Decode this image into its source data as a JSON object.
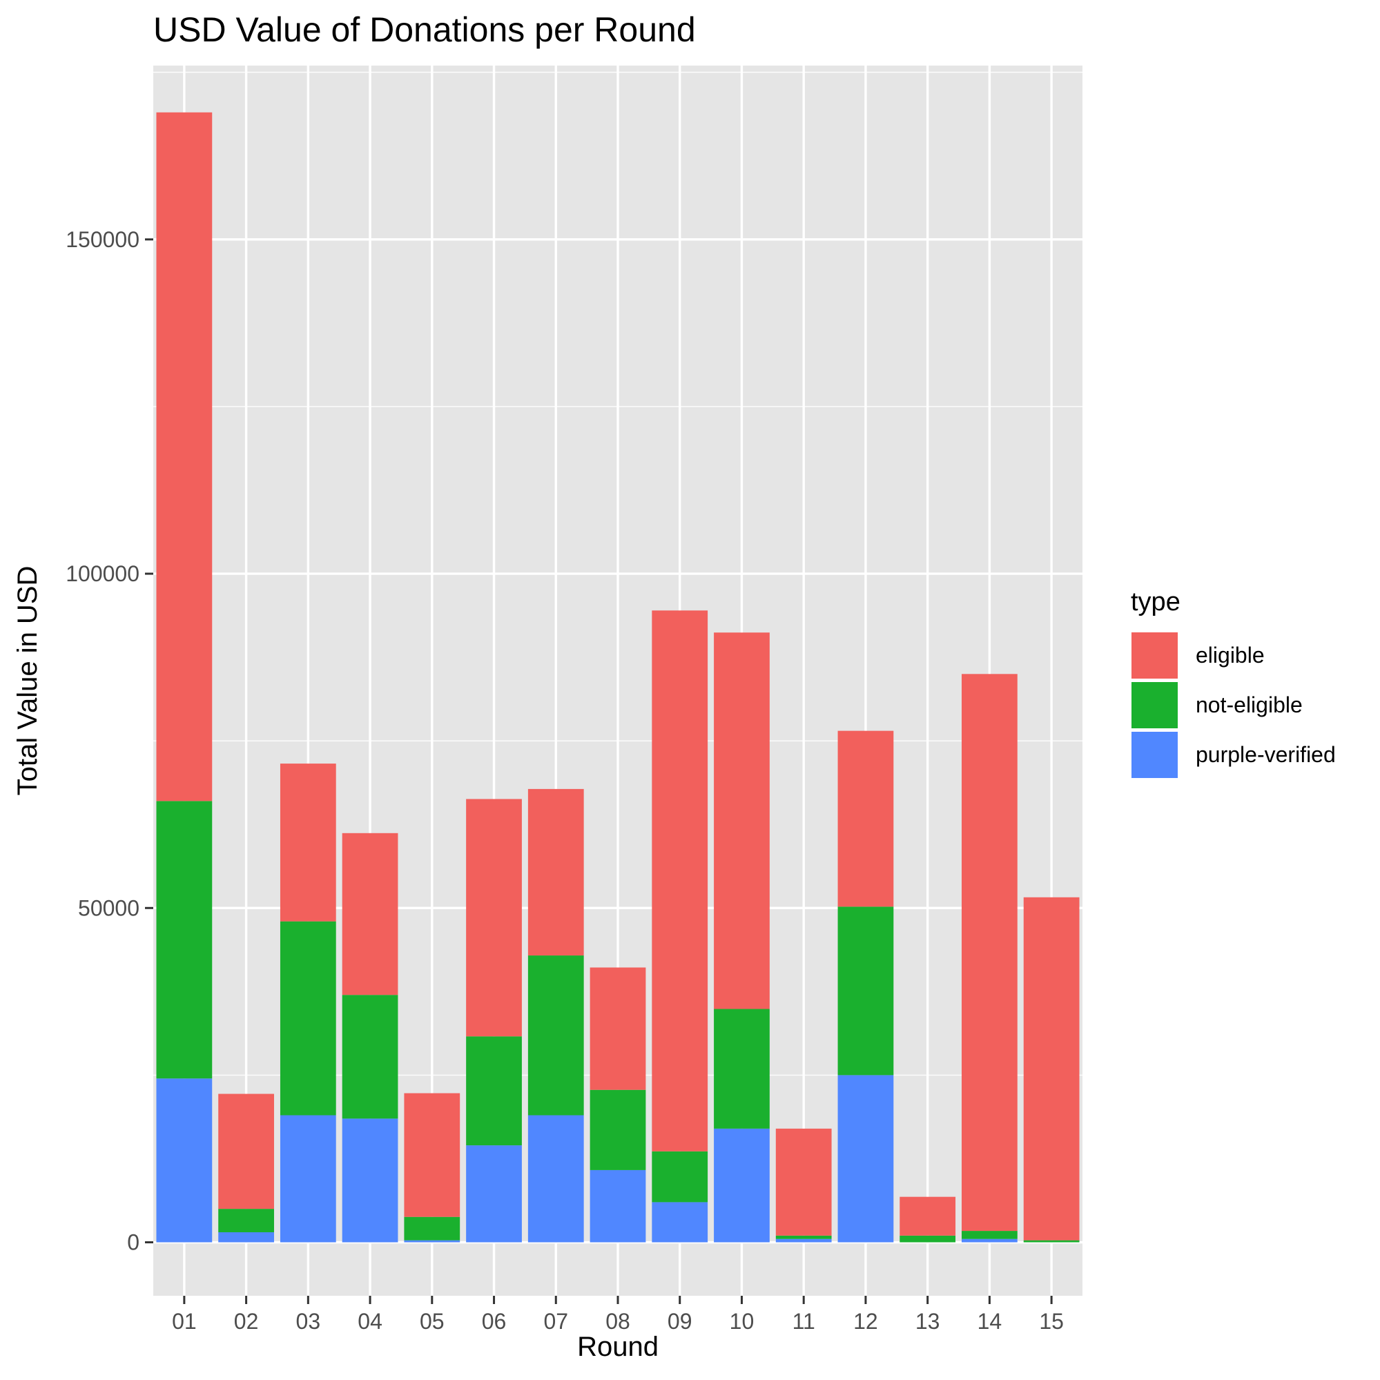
{
  "chart_data": {
    "type": "bar",
    "stacked": true,
    "title": "USD Value of Donations per Round",
    "xlabel": "Round",
    "ylabel": "Total Value in USD",
    "categories": [
      "01",
      "02",
      "03",
      "04",
      "05",
      "06",
      "07",
      "08",
      "09",
      "10",
      "11",
      "12",
      "13",
      "14",
      "15"
    ],
    "series": [
      {
        "name": "purple-verified",
        "color": "#5087FF",
        "values": [
          24500,
          1500,
          19000,
          18500,
          300,
          14500,
          19000,
          10800,
          6000,
          17000,
          500,
          25000,
          0,
          500,
          0
        ]
      },
      {
        "name": "not-eligible",
        "color": "#1AB02E",
        "values": [
          41500,
          3500,
          29000,
          18500,
          3500,
          16300,
          23900,
          12000,
          7600,
          17900,
          500,
          25200,
          1000,
          1200,
          300
        ]
      },
      {
        "name": "eligible",
        "color": "#F2605C",
        "values": [
          103000,
          17200,
          23600,
          24200,
          18500,
          35500,
          24900,
          18300,
          80900,
          56300,
          16000,
          26300,
          5800,
          83300,
          51300
        ]
      }
    ],
    "yticks": [
      0,
      50000,
      100000,
      150000
    ],
    "ylim": [
      -8000,
      176000
    ],
    "grid": true,
    "legend": {
      "title": "type",
      "position": "right",
      "entries": [
        "eligible",
        "not-eligible",
        "purple-verified"
      ]
    }
  },
  "colors": {
    "panel_background": "#E5E5E5",
    "grid_major": "#FFFFFF",
    "eligible": "#F2605C",
    "not-eligible": "#1AB02E",
    "purple-verified": "#5087FF"
  }
}
